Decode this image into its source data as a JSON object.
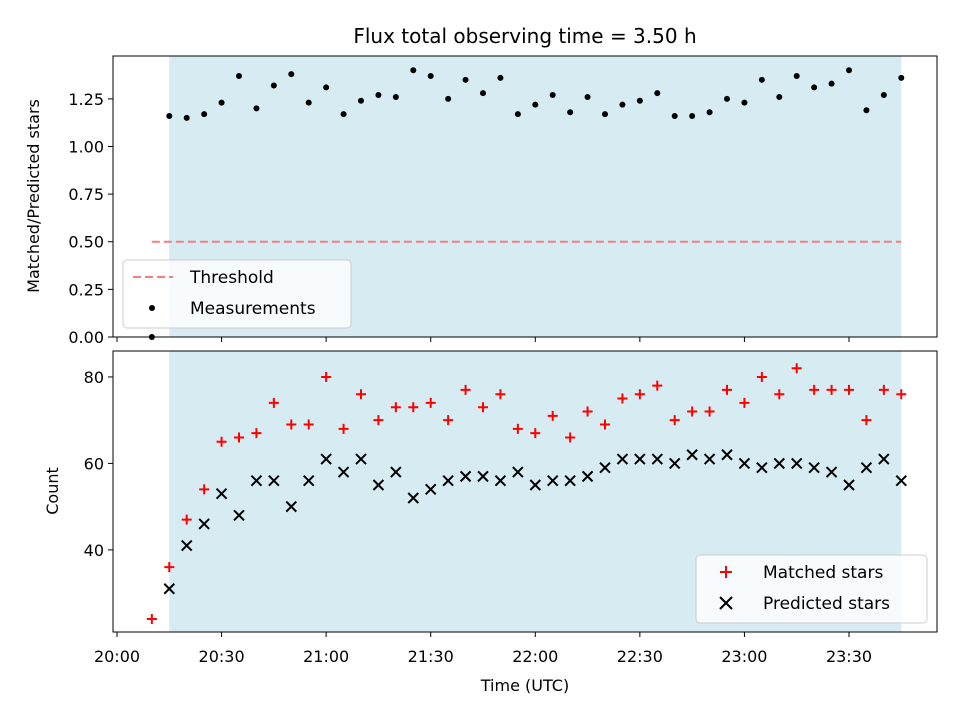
{
  "chart_data": [
    {
      "type": "scatter",
      "title": "Flux total observing time = 3.50 h",
      "ylabel": "Matched/Predicted stars",
      "xlabel": "",
      "ylim": [
        0,
        1.475
      ],
      "yticks": [
        "0.00",
        "0.25",
        "0.50",
        "0.75",
        "1.00",
        "1.25"
      ],
      "shaded_band": {
        "start": "20:15",
        "end": "23:45",
        "color": "#add8e6"
      },
      "threshold": {
        "name": "Threshold",
        "value": 0.5,
        "start": "20:10",
        "end": "23:45",
        "color": "#f08080"
      },
      "legend": {
        "placement": "lower-left",
        "entries": [
          "Threshold",
          "Measurements"
        ]
      },
      "series": [
        {
          "name": "Measurements",
          "marker": "dot",
          "color": "#000000",
          "x": [
            "20:10",
            "20:15",
            "20:20",
            "20:25",
            "20:30",
            "20:35",
            "20:40",
            "20:45",
            "20:50",
            "20:55",
            "21:00",
            "21:05",
            "21:10",
            "21:15",
            "21:20",
            "21:25",
            "21:30",
            "21:35",
            "21:40",
            "21:45",
            "21:50",
            "21:55",
            "22:00",
            "22:05",
            "22:10",
            "22:15",
            "22:20",
            "22:25",
            "22:30",
            "22:35",
            "22:40",
            "22:45",
            "22:50",
            "22:55",
            "23:00",
            "23:05",
            "23:10",
            "23:15",
            "23:20",
            "23:25",
            "23:30",
            "23:35",
            "23:40",
            "23:45"
          ],
          "y": [
            0.0,
            1.16,
            1.15,
            1.17,
            1.23,
            1.37,
            1.2,
            1.32,
            1.38,
            1.23,
            1.31,
            1.17,
            1.24,
            1.27,
            1.26,
            1.4,
            1.37,
            1.25,
            1.35,
            1.28,
            1.36,
            1.17,
            1.22,
            1.27,
            1.18,
            1.26,
            1.17,
            1.22,
            1.24,
            1.28,
            1.16,
            1.16,
            1.18,
            1.25,
            1.23,
            1.35,
            1.26,
            1.37,
            1.31,
            1.33,
            1.4,
            1.19,
            1.27,
            1.36
          ]
        }
      ]
    },
    {
      "type": "scatter",
      "xlabel": "Time (UTC)",
      "ylabel": "Count",
      "ylim": [
        21,
        86
      ],
      "yticks": [
        "40",
        "60",
        "80"
      ],
      "xticks": [
        "20:00",
        "20:30",
        "21:00",
        "21:30",
        "22:00",
        "22:30",
        "23:00",
        "23:30"
      ],
      "shaded_band": {
        "start": "20:15",
        "end": "23:45",
        "color": "#add8e6"
      },
      "legend": {
        "placement": "lower-right",
        "entries": [
          "Matched stars",
          "Predicted stars"
        ]
      },
      "series": [
        {
          "name": "Matched stars",
          "marker": "plus",
          "color": "#ff0000",
          "x": [
            "20:10",
            "20:15",
            "20:20",
            "20:25",
            "20:30",
            "20:35",
            "20:40",
            "20:45",
            "20:50",
            "20:55",
            "21:00",
            "21:05",
            "21:10",
            "21:15",
            "21:20",
            "21:25",
            "21:30",
            "21:35",
            "21:40",
            "21:45",
            "21:50",
            "21:55",
            "22:00",
            "22:05",
            "22:10",
            "22:15",
            "22:20",
            "22:25",
            "22:30",
            "22:35",
            "22:40",
            "22:45",
            "22:50",
            "22:55",
            "23:00",
            "23:05",
            "23:10",
            "23:15",
            "23:20",
            "23:25",
            "23:30",
            "23:35",
            "23:40",
            "23:45"
          ],
          "y": [
            24,
            36,
            47,
            54,
            65,
            66,
            67,
            74,
            69,
            69,
            80,
            68,
            76,
            70,
            73,
            73,
            74,
            70,
            77,
            73,
            76,
            68,
            67,
            71,
            66,
            72,
            69,
            75,
            76,
            78,
            70,
            72,
            72,
            77,
            74,
            80,
            76,
            82,
            77,
            77,
            77,
            70,
            77,
            76
          ]
        },
        {
          "name": "Predicted stars",
          "marker": "x",
          "color": "#000000",
          "x": [
            "20:15",
            "20:20",
            "20:25",
            "20:30",
            "20:35",
            "20:40",
            "20:45",
            "20:50",
            "20:55",
            "21:00",
            "21:05",
            "21:10",
            "21:15",
            "21:20",
            "21:25",
            "21:30",
            "21:35",
            "21:40",
            "21:45",
            "21:50",
            "21:55",
            "22:00",
            "22:05",
            "22:10",
            "22:15",
            "22:20",
            "22:25",
            "22:30",
            "22:35",
            "22:40",
            "22:45",
            "22:50",
            "22:55",
            "23:00",
            "23:05",
            "23:10",
            "23:15",
            "23:20",
            "23:25",
            "23:30",
            "23:35",
            "23:40",
            "23:45"
          ],
          "y": [
            31,
            41,
            46,
            53,
            48,
            56,
            56,
            50,
            56,
            61,
            58,
            61,
            55,
            58,
            52,
            54,
            56,
            57,
            57,
            56,
            58,
            55,
            56,
            56,
            57,
            59,
            61,
            61,
            61,
            60,
            62,
            61,
            62,
            60,
            59,
            60,
            60,
            59,
            58,
            55,
            59,
            61,
            56
          ]
        }
      ]
    }
  ]
}
